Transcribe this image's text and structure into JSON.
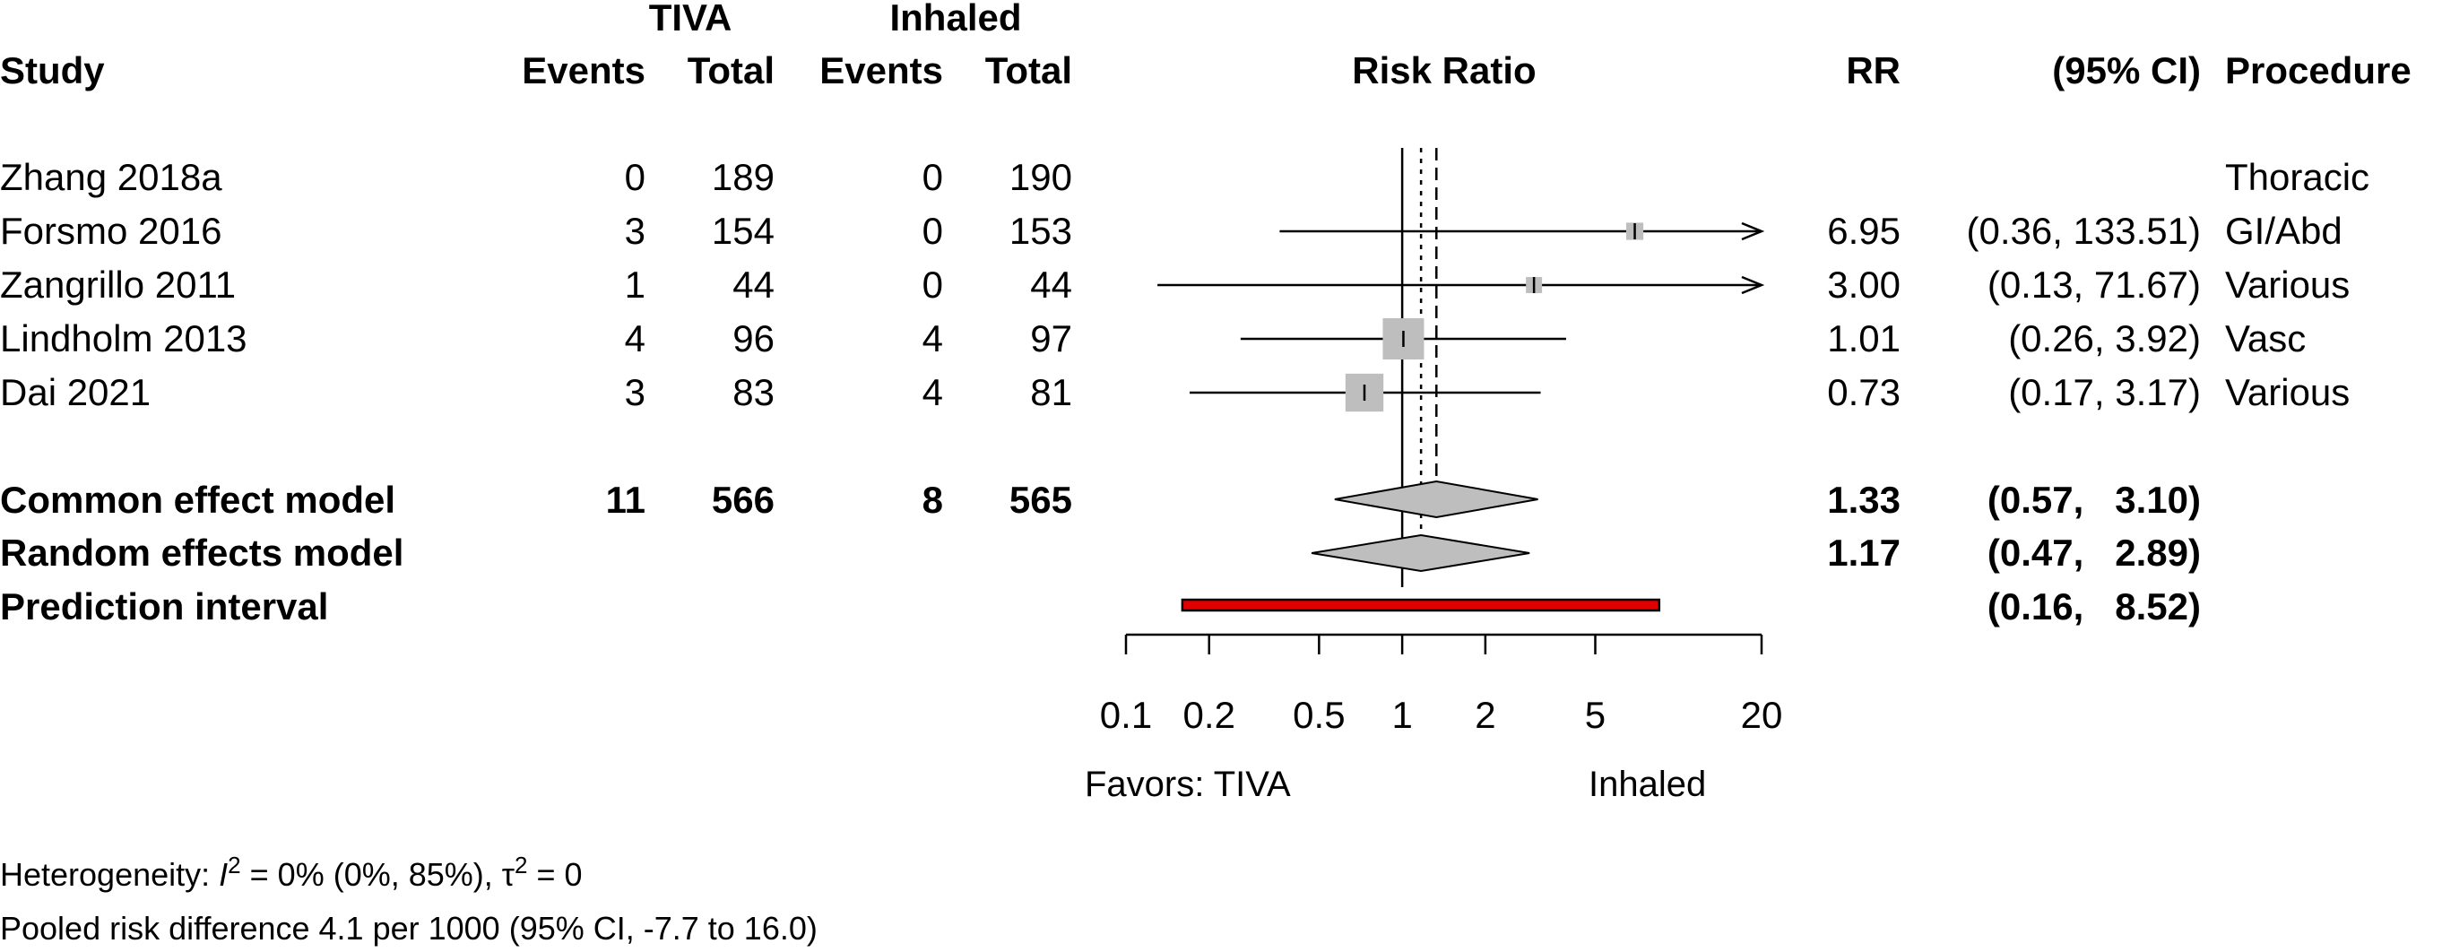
{
  "header": {
    "group1": "TIVA",
    "group2": "Inhaled",
    "study": "Study",
    "events": "Events",
    "total": "Total",
    "effect": "Risk Ratio",
    "rr": "RR",
    "ci": "(95% CI)",
    "procedure": "Procedure"
  },
  "chart_data": {
    "type": "forest",
    "measure": "Risk Ratio",
    "x_scale": "log",
    "xlim": [
      0.1,
      20
    ],
    "ticks": [
      0.1,
      0.2,
      0.5,
      1,
      2,
      5,
      20
    ],
    "tick_labels": [
      "0.1",
      "0.2",
      "0.5",
      "1",
      "2",
      "5",
      "20"
    ],
    "studies": [
      {
        "study": "Zhang 2018a",
        "e1": "0",
        "n1": "189",
        "e2": "0",
        "n2": "190",
        "rr": null,
        "lo": null,
        "hi": null,
        "rr_text": "",
        "ci_text": "",
        "procedure": "Thoracic",
        "weight": 0
      },
      {
        "study": "Forsmo 2016",
        "e1": "3",
        "n1": "154",
        "e2": "0",
        "n2": "153",
        "rr": 6.95,
        "lo": 0.36,
        "hi": 133.51,
        "rr_text": "6.95",
        "ci_text": "(0.36, 133.51)",
        "procedure": "GI/Abd",
        "weight": 0.08
      },
      {
        "study": "Zangrillo 2011",
        "e1": "1",
        "n1": "44",
        "e2": "0",
        "n2": "44",
        "rr": 3.0,
        "lo": 0.13,
        "hi": 71.67,
        "rr_text": "3.00",
        "ci_text": "(0.13,  71.67)",
        "procedure": "Various",
        "weight": 0.07
      },
      {
        "study": "Lindholm 2013",
        "e1": "4",
        "n1": "96",
        "e2": "4",
        "n2": "97",
        "rr": 1.01,
        "lo": 0.26,
        "hi": 3.92,
        "rr_text": "1.01",
        "ci_text": "(0.26,   3.92)",
        "procedure": "Vasc",
        "weight": 0.46
      },
      {
        "study": "Dai 2021",
        "e1": "3",
        "n1": "83",
        "e2": "4",
        "n2": "81",
        "rr": 0.73,
        "lo": 0.17,
        "hi": 3.17,
        "rr_text": "0.73",
        "ci_text": "(0.17,   3.17)",
        "procedure": "Various",
        "weight": 0.39
      }
    ],
    "common": {
      "label": "Common effect model",
      "e1": "11",
      "n1": "566",
      "e2": "8",
      "n2": "565",
      "rr": 1.33,
      "lo": 0.57,
      "hi": 3.1,
      "rr_text": "1.33",
      "ci_text": "(0.57,   3.10)"
    },
    "random": {
      "label": "Random effects model",
      "rr": 1.17,
      "lo": 0.47,
      "hi": 2.89,
      "rr_text": "1.17",
      "ci_text": "(0.47,   2.89)"
    },
    "prediction": {
      "label": "Prediction interval",
      "lo": 0.16,
      "hi": 8.52,
      "ci_text": "(0.16,   8.52)"
    },
    "favors_left": "Favors: TIVA",
    "favors_right": "Inhaled",
    "colors": {
      "box": "#bebebe",
      "prediction": "#e00000",
      "line": "#000000"
    }
  },
  "footer": {
    "heterogeneity_prefix": "Heterogeneity: ",
    "i2_symbol": "I",
    "i2_sup": "2",
    "i2_value": " = 0% (0%, 85%), ",
    "tau_symbol": "τ",
    "tau_sup": "2",
    "tau_value": " = 0",
    "pooled": "Pooled risk difference 4.1 per 1000 (95% CI, -7.7 to 16.0)"
  }
}
